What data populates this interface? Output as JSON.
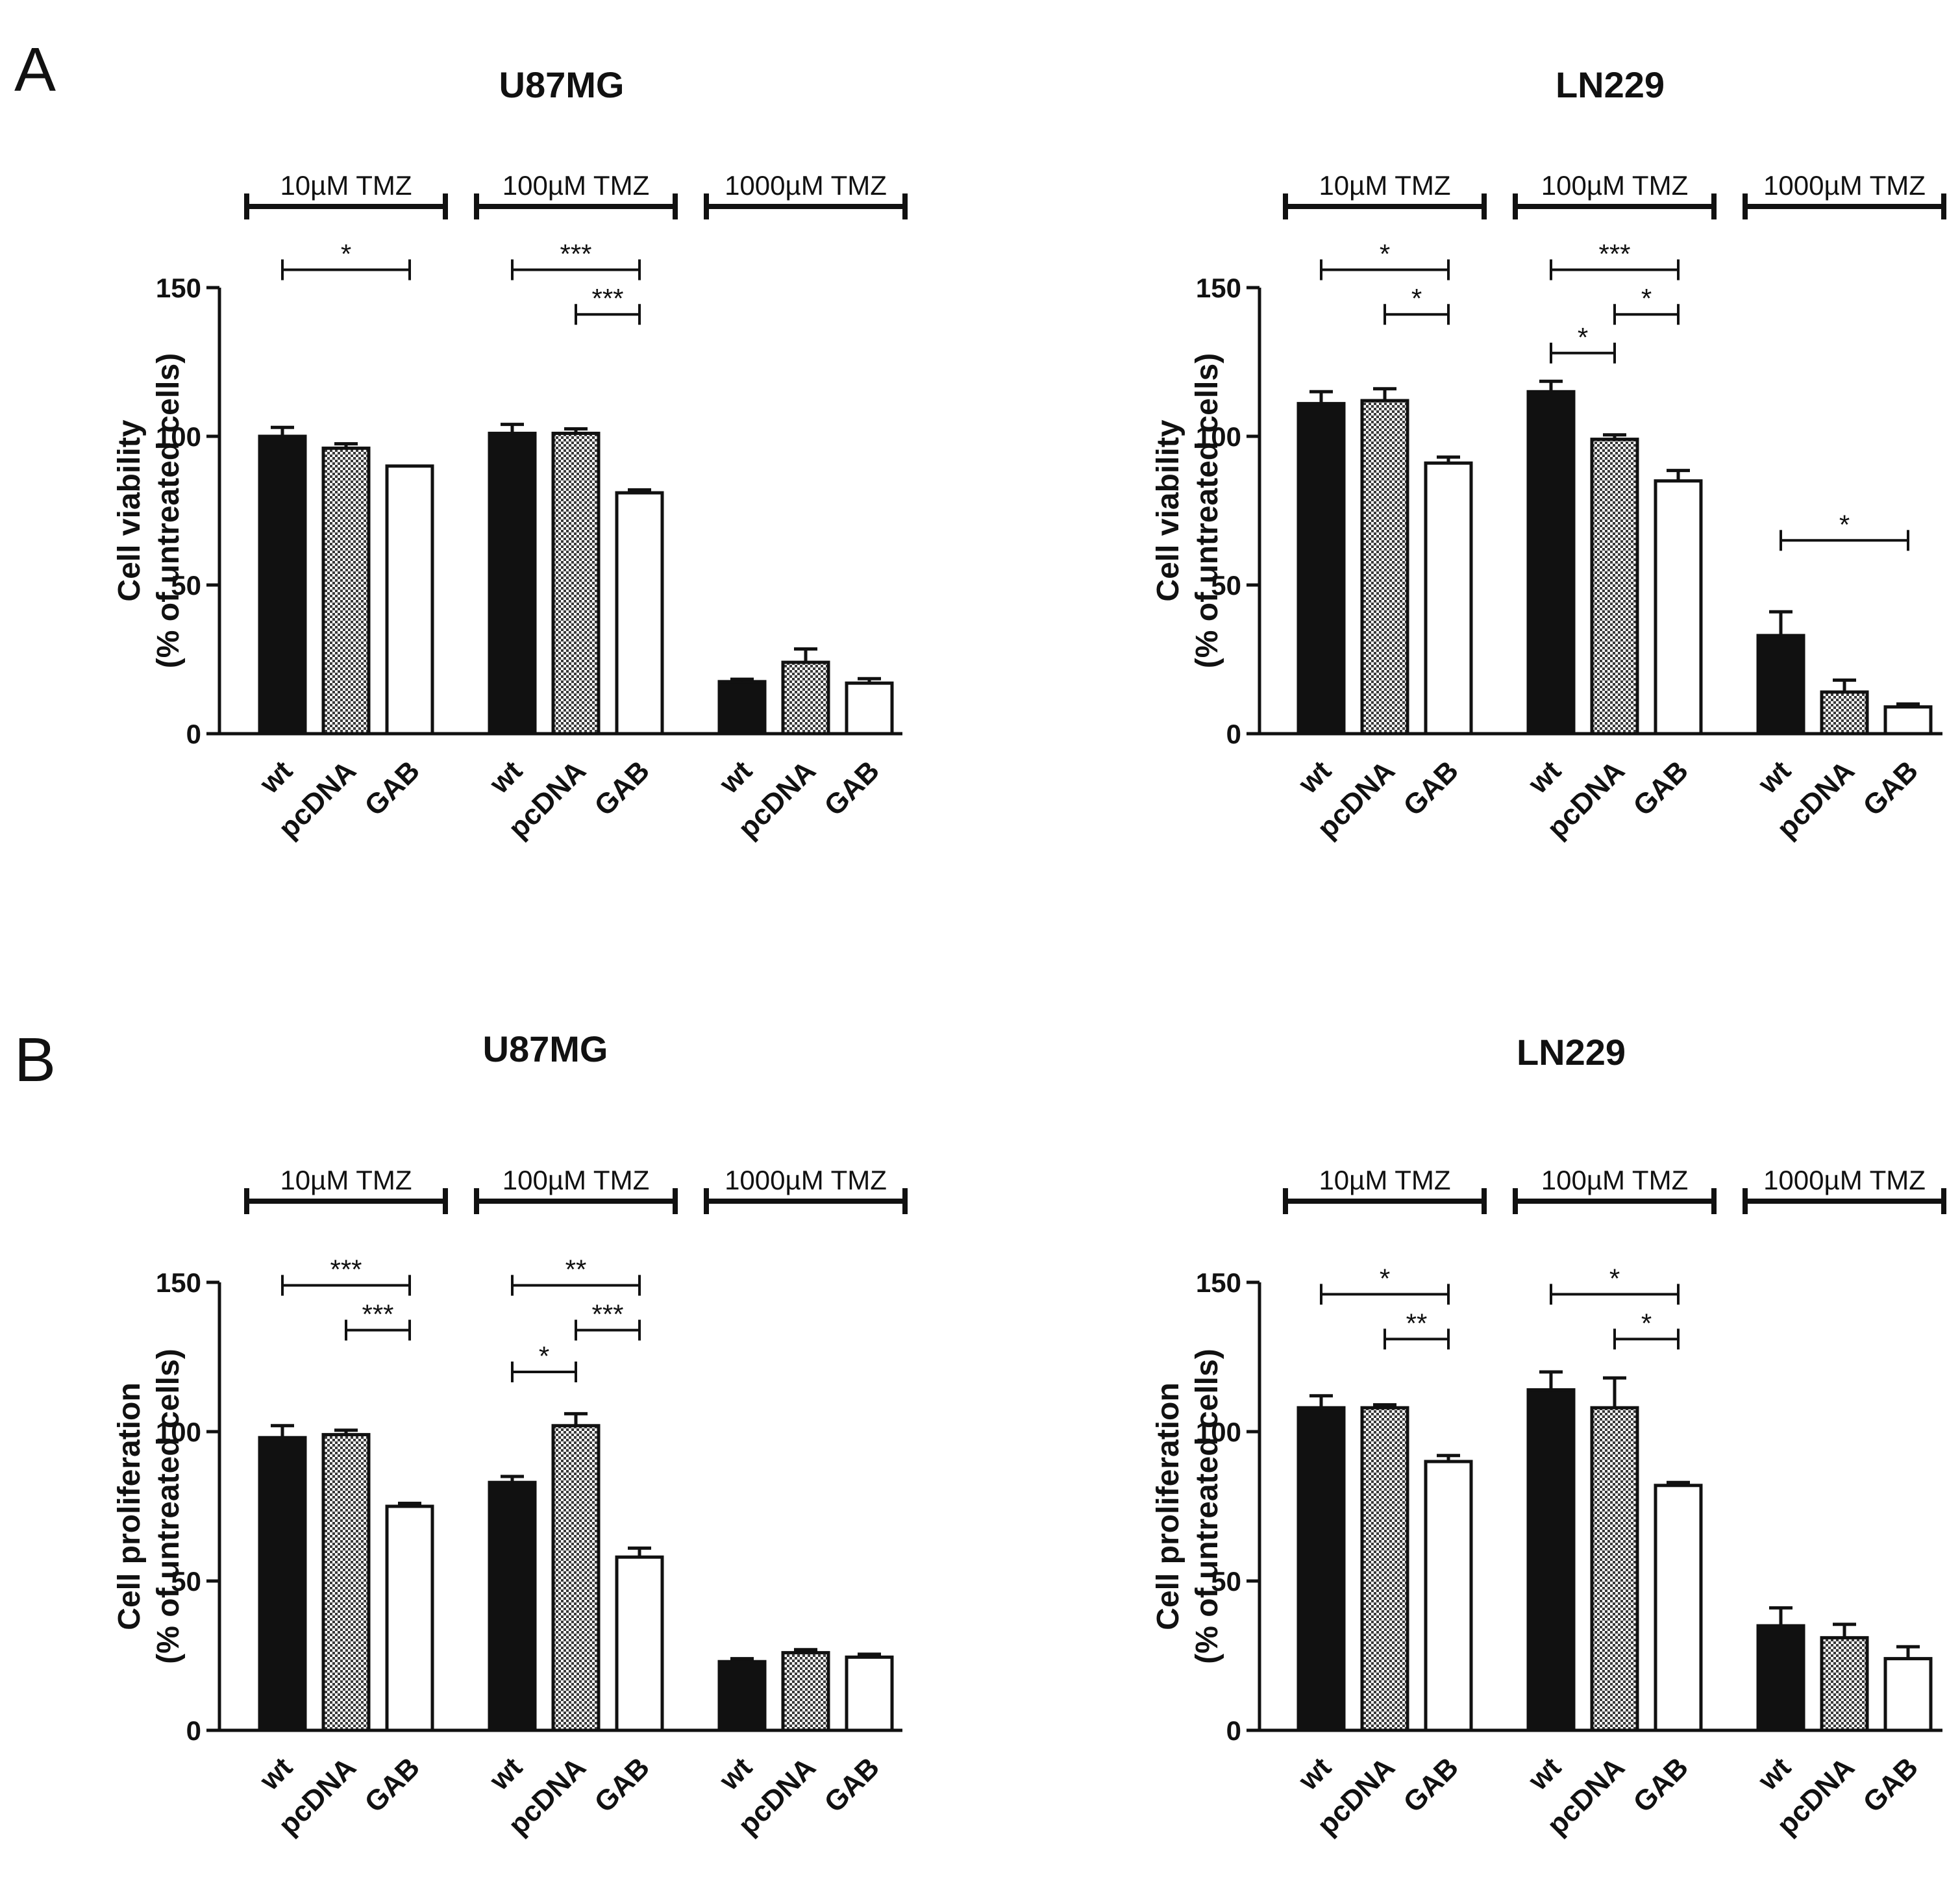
{
  "panel_labels": [
    "A",
    "B"
  ],
  "colors": {
    "wt": "#111111",
    "pcDNA": "checkered",
    "GAB": "#ffffff",
    "stroke": "#111111"
  },
  "chart_data": [
    {
      "panel": "A",
      "type": "bar",
      "title": "U87MG",
      "ylabel_line1": "Cell viability",
      "ylabel_line2": "(% of untreated cells)",
      "ylim": [
        0,
        150
      ],
      "yticks": [
        "0",
        "50",
        "100",
        "150"
      ],
      "ytick_values": [
        0,
        50,
        100,
        150
      ],
      "categories": [
        "wt",
        "pcDNA",
        "GAB"
      ],
      "groups": [
        {
          "label": "10µM TMZ",
          "values": [
            100,
            96,
            90
          ],
          "errors": [
            3,
            1.5,
            0
          ]
        },
        {
          "label": "100µM TMZ",
          "values": [
            101,
            101,
            81
          ],
          "errors": [
            3,
            1.5,
            1
          ]
        },
        {
          "label": "1000µM TMZ",
          "values": [
            17.5,
            24,
            17
          ],
          "errors": [
            0.8,
            4.5,
            1.5
          ]
        }
      ],
      "significance": [
        {
          "group": 0,
          "from": 0,
          "to": 2,
          "y": 156,
          "label": "*"
        },
        {
          "group": 1,
          "from": 0,
          "to": 2,
          "y": 156,
          "label": "***"
        },
        {
          "group": 1,
          "from": 1,
          "to": 2,
          "y": 141,
          "label": "***"
        }
      ]
    },
    {
      "panel": "A",
      "type": "bar",
      "title": "LN229",
      "ylabel_line1": "Cell viability",
      "ylabel_line2": "(% of untreated cells)",
      "ylim": [
        0,
        150
      ],
      "yticks": [
        "0",
        "50",
        "100",
        "150"
      ],
      "ytick_values": [
        0,
        50,
        100,
        150
      ],
      "categories": [
        "wt",
        "pcDNA",
        "GAB"
      ],
      "groups": [
        {
          "label": "10µM TMZ",
          "values": [
            111,
            112,
            91
          ],
          "errors": [
            4,
            4,
            2
          ]
        },
        {
          "label": "100µM TMZ",
          "values": [
            115,
            99,
            85
          ],
          "errors": [
            3.5,
            1.5,
            3.5
          ]
        },
        {
          "label": "1000µM TMZ",
          "values": [
            33,
            14,
            9
          ],
          "errors": [
            8,
            4,
            1
          ]
        }
      ],
      "significance": [
        {
          "group": 0,
          "from": 0,
          "to": 2,
          "y": 156,
          "label": "*"
        },
        {
          "group": 0,
          "from": 1,
          "to": 2,
          "y": 141,
          "label": "*"
        },
        {
          "group": 1,
          "from": 0,
          "to": 2,
          "y": 156,
          "label": "***"
        },
        {
          "group": 1,
          "from": 1,
          "to": 2,
          "y": 141,
          "label": "*"
        },
        {
          "group": 1,
          "from": 0,
          "to": 1,
          "y": 128,
          "label": "*"
        },
        {
          "group": 2,
          "from": 0,
          "to": 2,
          "y": 65,
          "label": "*"
        }
      ]
    },
    {
      "panel": "B",
      "type": "bar",
      "title": "U87MG",
      "ylabel_line1": "Cell proliferation",
      "ylabel_line2": "(% of untreated cells)",
      "ylim": [
        0,
        150
      ],
      "yticks": [
        "0",
        "50",
        "100",
        "150"
      ],
      "ytick_values": [
        0,
        50,
        100,
        150
      ],
      "categories": [
        "wt",
        "pcDNA",
        "GAB"
      ],
      "groups": [
        {
          "label": "10µM TMZ",
          "values": [
            98,
            99,
            75
          ],
          "errors": [
            4,
            1.5,
            1
          ]
        },
        {
          "label": "100µM TMZ",
          "values": [
            83,
            102,
            58
          ],
          "errors": [
            2,
            4,
            3
          ]
        },
        {
          "label": "1000µM TMZ",
          "values": [
            23,
            26,
            24.5
          ],
          "errors": [
            1,
            1,
            1
          ]
        }
      ],
      "significance": [
        {
          "group": 0,
          "from": 0,
          "to": 2,
          "y": 149,
          "label": "***"
        },
        {
          "group": 0,
          "from": 1,
          "to": 2,
          "y": 134,
          "label": "***"
        },
        {
          "group": 1,
          "from": 0,
          "to": 2,
          "y": 149,
          "label": "**"
        },
        {
          "group": 1,
          "from": 1,
          "to": 2,
          "y": 134,
          "label": "***"
        },
        {
          "group": 1,
          "from": 0,
          "to": 1,
          "y": 120,
          "label": "*"
        }
      ]
    },
    {
      "panel": "B",
      "type": "bar",
      "title": "LN229",
      "ylabel_line1": "Cell proliferation",
      "ylabel_line2": "(% of untreated cells)",
      "ylim": [
        0,
        150
      ],
      "yticks": [
        "0",
        "50",
        "100",
        "150"
      ],
      "ytick_values": [
        0,
        50,
        100,
        150
      ],
      "categories": [
        "wt",
        "pcDNA",
        "GAB"
      ],
      "groups": [
        {
          "label": "10µM TMZ",
          "values": [
            108,
            108,
            90
          ],
          "errors": [
            4,
            1,
            2
          ]
        },
        {
          "label": "100µM TMZ",
          "values": [
            114,
            108,
            82
          ],
          "errors": [
            6,
            10,
            1
          ]
        },
        {
          "label": "1000µM TMZ",
          "values": [
            35,
            31,
            24
          ],
          "errors": [
            6,
            4.5,
            4
          ]
        }
      ],
      "significance": [
        {
          "group": 0,
          "from": 0,
          "to": 2,
          "y": 146,
          "label": "*"
        },
        {
          "group": 0,
          "from": 1,
          "to": 2,
          "y": 131,
          "label": "**"
        },
        {
          "group": 1,
          "from": 0,
          "to": 2,
          "y": 146,
          "label": "*"
        },
        {
          "group": 1,
          "from": 1,
          "to": 2,
          "y": 131,
          "label": "*"
        }
      ]
    }
  ]
}
